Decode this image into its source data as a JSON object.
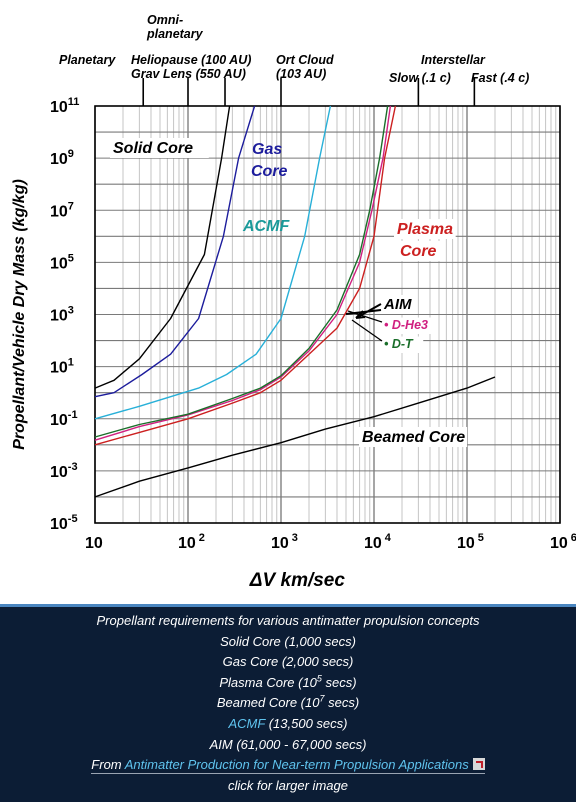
{
  "chart_data": {
    "type": "line",
    "xscale": "log",
    "yscale": "log",
    "xlim": [
      10,
      1000000
    ],
    "ylim": [
      1e-05,
      100000000000
    ],
    "xlabel": "ΔV  km/sec",
    "ylabel": "Propellant/Vehicle Dry Mass (kg/kg)",
    "x_ticks": [
      {
        "v": 10,
        "base": "10",
        "exp": ""
      },
      {
        "v": 100,
        "base": "10",
        "exp": "2"
      },
      {
        "v": 1000,
        "base": "10",
        "exp": "3"
      },
      {
        "v": 10000,
        "base": "10",
        "exp": "4"
      },
      {
        "v": 100000,
        "base": "10",
        "exp": "5"
      },
      {
        "v": 1000000,
        "base": "10",
        "exp": "6"
      }
    ],
    "y_ticks": [
      {
        "v": 100000000000,
        "exp": "11"
      },
      {
        "v": 1000000000,
        "exp": "9"
      },
      {
        "v": 10000000,
        "exp": "7"
      },
      {
        "v": 100000,
        "exp": "5"
      },
      {
        "v": 1000,
        "exp": "3"
      },
      {
        "v": 10,
        "exp": "1"
      },
      {
        "v": 0.1,
        "exp": "-1"
      },
      {
        "v": 0.001,
        "exp": "-3"
      },
      {
        "v": 1e-05,
        "exp": "-5"
      }
    ],
    "mission_labels": [
      {
        "x": 30,
        "lines": [
          "Planetary"
        ],
        "tick": false
      },
      {
        "x": 150,
        "lines": [
          "Omni-",
          "planetary"
        ],
        "tick": false
      },
      {
        "x": 100,
        "lines": [
          "Heliopause (100 AU)",
          "Grav Lens (550 AU)"
        ],
        "tick": false
      },
      {
        "x": 1000,
        "lines": [
          "Ort Cloud",
          "(103 AU)"
        ],
        "tick": true
      },
      {
        "x": 40000,
        "lines": [
          "Interstellar"
        ],
        "tick": false
      },
      {
        "x": 30000,
        "lines": [
          "Slow (.1 c)"
        ],
        "tick": true
      },
      {
        "x": 120000,
        "lines": [
          "Fast (.4 c)"
        ],
        "tick": true
      }
    ],
    "mission_ticks": [
      33,
      100,
      250,
      1000,
      30000,
      120000
    ],
    "series": [
      {
        "name": "Solid Core",
        "color": "#000000",
        "points": [
          [
            10,
            1.5
          ],
          [
            16,
            3
          ],
          [
            30,
            20
          ],
          [
            65,
            700
          ],
          [
            150,
            200000
          ],
          [
            230,
            1000000000.0
          ],
          [
            280,
            100000000000.0
          ]
        ]
      },
      {
        "name": "Gas Core",
        "color": "#1c1c9c",
        "points": [
          [
            10,
            0.7
          ],
          [
            16,
            1
          ],
          [
            32,
            5
          ],
          [
            65,
            30
          ],
          [
            130,
            700
          ],
          [
            240,
            1000000.0
          ],
          [
            350,
            1000000000.0
          ],
          [
            520,
            100000000000.0
          ]
        ]
      },
      {
        "name": "ACMF",
        "color": "#28b0d8",
        "points": [
          [
            10,
            0.1
          ],
          [
            30,
            0.3
          ],
          [
            130,
            1.5
          ],
          [
            260,
            5
          ],
          [
            540,
            30
          ],
          [
            1000,
            700
          ],
          [
            1800,
            1000000.0
          ],
          [
            2600,
            1000000000.0
          ],
          [
            3400,
            100000000000.0
          ]
        ]
      },
      {
        "name": "Plasma Core",
        "color": "#cc2020",
        "points": [
          [
            10,
            0.01
          ],
          [
            30,
            0.03
          ],
          [
            100,
            0.1
          ],
          [
            300,
            0.4
          ],
          [
            600,
            1
          ],
          [
            1000,
            3
          ],
          [
            2000,
            30
          ],
          [
            4000,
            300
          ],
          [
            7000,
            10000
          ],
          [
            10000,
            1000000.0
          ],
          [
            13000,
            1000000000.0
          ],
          [
            17000,
            100000000000.0
          ]
        ]
      },
      {
        "name": "AIM D-He3",
        "color": "#d02080",
        "points": [
          [
            10,
            0.015
          ],
          [
            30,
            0.05
          ],
          [
            100,
            0.14
          ],
          [
            300,
            0.5
          ],
          [
            600,
            1.3
          ],
          [
            1000,
            4
          ],
          [
            2000,
            40
          ],
          [
            4000,
            1000
          ],
          [
            7000,
            100000
          ],
          [
            9500,
            10000000.0
          ],
          [
            12500,
            1000000000.0
          ],
          [
            15000,
            100000000000.0
          ]
        ]
      },
      {
        "name": "AIM D-T",
        "color": "#1a6e2a",
        "points": [
          [
            10,
            0.02
          ],
          [
            30,
            0.06
          ],
          [
            100,
            0.15
          ],
          [
            300,
            0.6
          ],
          [
            600,
            1.5
          ],
          [
            1000,
            4.5
          ],
          [
            2000,
            50
          ],
          [
            4000,
            1500
          ],
          [
            7000,
            200000
          ],
          [
            9000,
            10000000.0
          ],
          [
            11500,
            1000000000.0
          ],
          [
            14000,
            100000000000.0
          ]
        ]
      },
      {
        "name": "Beamed Core",
        "color": "#000000",
        "points": [
          [
            10,
            0.0001
          ],
          [
            30,
            0.0004
          ],
          [
            100,
            0.0013
          ],
          [
            300,
            0.004
          ],
          [
            1000,
            0.012
          ],
          [
            3000,
            0.04
          ],
          [
            10000,
            0.12
          ],
          [
            30000,
            0.4
          ],
          [
            100000,
            1.5
          ],
          [
            200000,
            4
          ]
        ]
      }
    ],
    "labels": [
      {
        "text": "Solid Core",
        "color": "#000000"
      },
      {
        "text": "Gas",
        "color": "#1c1c9c"
      },
      {
        "text": "Core",
        "color": "#1c1c9c"
      },
      {
        "text": "ACMF",
        "color": "#1a9a9a"
      },
      {
        "text": "Plasma",
        "color": "#cc2020"
      },
      {
        "text": "Core",
        "color": "#cc2020"
      },
      {
        "text": "AIM",
        "color": "#000000"
      },
      {
        "text": "• D-He3",
        "color": "#d02080"
      },
      {
        "text": "• D-T",
        "color": "#1a6e2a"
      },
      {
        "text": "Beamed Core",
        "color": "#000000"
      }
    ]
  },
  "caption": {
    "title": "Propellant requirements for various antimatter propulsion concepts",
    "solid": "Solid Core (1,000 secs)",
    "gas": "Gas Core (2,000 secs)",
    "plasma_a": "Plasma Core (10",
    "plasma_exp": "5",
    "plasma_b": " secs)",
    "beamed_a": "Beamed Core (10",
    "beamed_exp": "7",
    "beamed_b": " secs)",
    "acmf_link": "ACMF",
    "acmf_rest": " (13,500 secs)",
    "aim": "AIM (61,000 - 67,000 secs)",
    "from": "From ",
    "source_link": "Antimatter Production for Near-term Propulsion Applications",
    "larger": "click for larger image"
  }
}
